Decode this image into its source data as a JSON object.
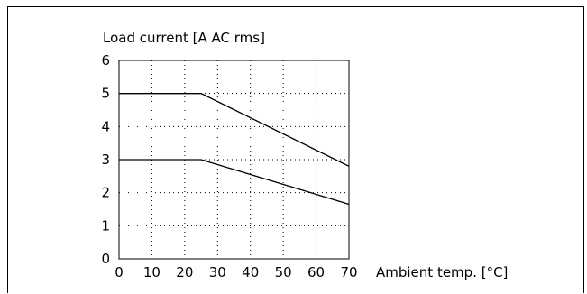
{
  "chart_data": {
    "type": "line",
    "ylabel": "Load current [A AC rms]",
    "xlabel": "Ambient temp. [°C]",
    "xlim": [
      0,
      70
    ],
    "ylim": [
      0,
      6
    ],
    "xticks": [
      0,
      10,
      20,
      30,
      40,
      50,
      60,
      70
    ],
    "yticks": [
      0,
      1,
      2,
      3,
      4,
      5,
      6
    ],
    "grid": "dotted",
    "series": [
      {
        "x": [
          0,
          25,
          70
        ],
        "y": [
          5.0,
          5.0,
          2.8
        ]
      },
      {
        "x": [
          0,
          25,
          70
        ],
        "y": [
          3.0,
          3.0,
          1.65
        ]
      }
    ]
  }
}
